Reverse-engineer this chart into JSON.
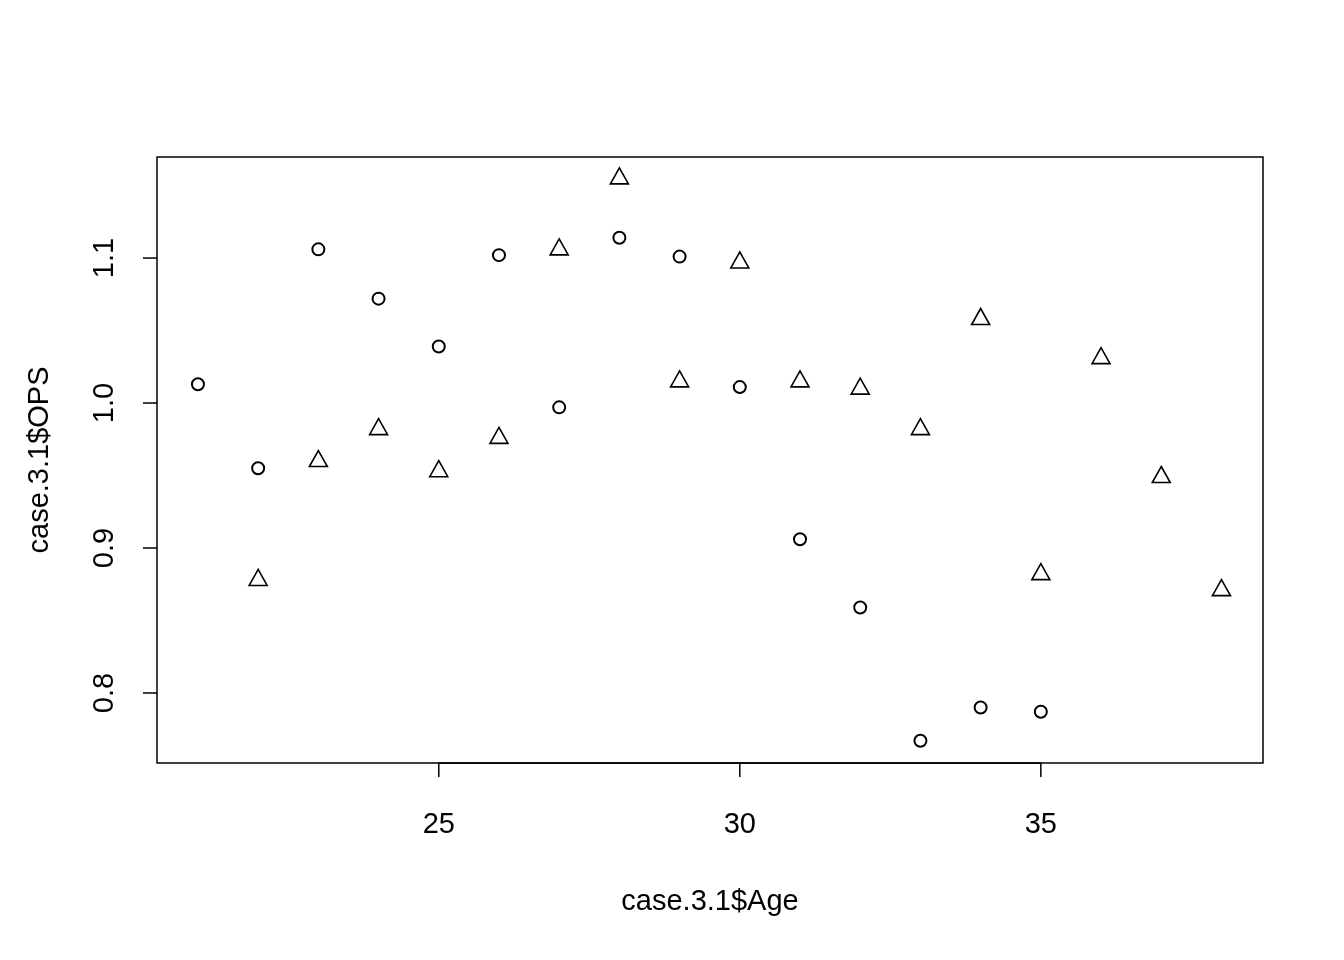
{
  "chart_data": {
    "type": "scatter",
    "xlabel": "case.3.1$Age",
    "ylabel": "case.3.1$OPS",
    "xlim": [
      20.32,
      38.69
    ],
    "ylim": [
      0.7517,
      1.1697
    ],
    "xticks": [
      25,
      30,
      35
    ],
    "yticks": [
      0.8,
      0.9,
      {
        "value": 1,
        "label": "1.0"
      },
      1.1
    ],
    "grid": false,
    "series": [
      {
        "color": "#000000",
        "marker": "circle",
        "x": [
          21,
          22,
          23,
          24,
          25,
          26,
          27,
          28,
          29,
          30,
          31,
          32,
          33,
          34,
          35
        ],
        "values": [
          1.013,
          0.955,
          1.106,
          1.072,
          1.039,
          1.102,
          0.997,
          1.114,
          1.101,
          1.011,
          0.906,
          0.859,
          0.767,
          0.79,
          0.787
        ]
      },
      {
        "color": "#000000",
        "marker": "triangle",
        "x": [
          22,
          23,
          24,
          25,
          26,
          27,
          28,
          29,
          30,
          31,
          32,
          33,
          34,
          35,
          36,
          37,
          38
        ],
        "values": [
          0.879,
          0.961,
          0.983,
          0.954,
          0.977,
          1.107,
          1.156,
          1.016,
          1.098,
          1.016,
          1.011,
          0.983,
          1.059,
          0.883,
          1.032,
          0.95,
          0.872
        ]
      }
    ]
  }
}
